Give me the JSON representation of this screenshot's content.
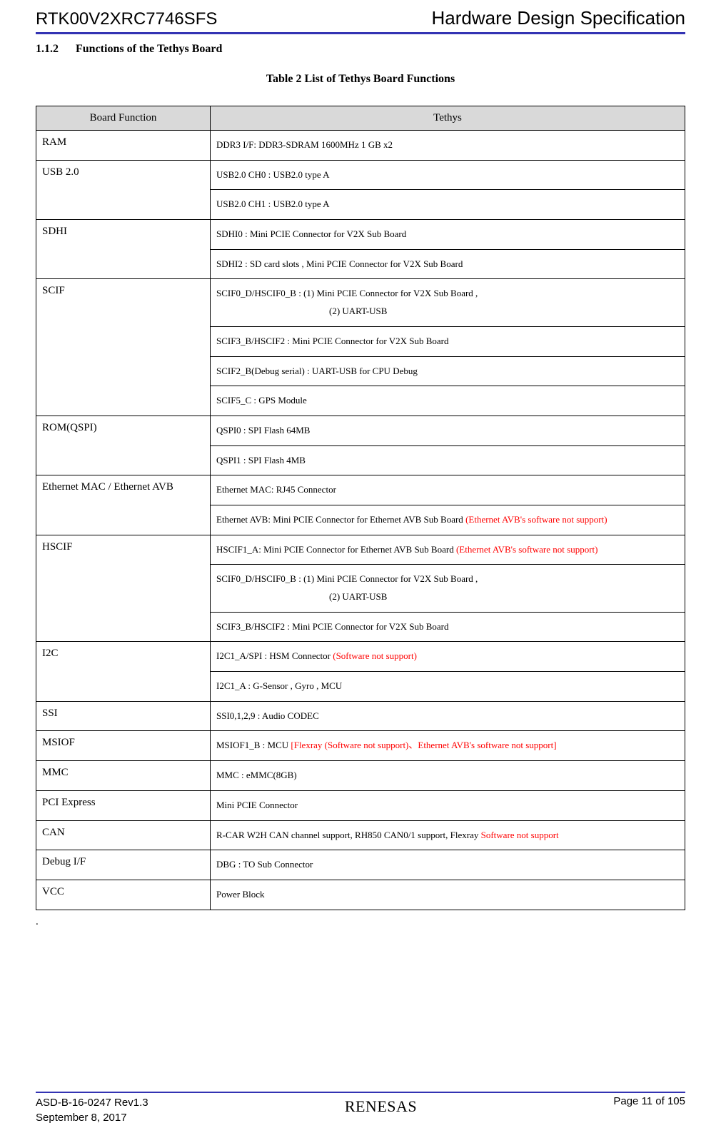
{
  "header": {
    "doc_id": "RTK00V2XRC7746SFS",
    "doc_title": "Hardware Design Specification"
  },
  "section": {
    "number": "1.1.2",
    "title": "Functions of the Tethys Board"
  },
  "table": {
    "caption": "Table 2    List of Tethys Board Functions",
    "col1_header": "Board Function",
    "col2_header": "Tethys",
    "rows": {
      "ram": {
        "label": "RAM",
        "v1": "DDR3 I/F: DDR3-SDRAM 1600MHz 1 GB x2"
      },
      "usb": {
        "label": "USB 2.0",
        "v1": "USB2.0 CH0 : USB2.0 type A",
        "v2": "USB2.0 CH1 : USB2.0 type A"
      },
      "sdhi": {
        "label": "SDHI",
        "v1": "SDHI0 : Mini PCIE Connector for V2X Sub Board",
        "v2": "SDHI2 : SD card slots , Mini PCIE Connector for V2X Sub Board"
      },
      "scif": {
        "label": "SCIF",
        "v1a": "SCIF0_D/HSCIF0_B : (1) Mini PCIE Connector for V2X Sub Board ,",
        "v1b": "(2) UART-USB",
        "v2": "SCIF3_B/HSCIF2 : Mini PCIE Connector for V2X Sub Board",
        "v3": "SCIF2_B(Debug serial) : UART-USB for CPU Debug",
        "v4": "SCIF5_C : GPS Module"
      },
      "rom": {
        "label": "ROM(QSPI)",
        "v1": "QSPI0 : SPI Flash 64MB",
        "v2": "QSPI1 : SPI Flash 4MB"
      },
      "eth": {
        "label": "Ethernet MAC / Ethernet AVB",
        "v1": "Ethernet MAC: RJ45 Connector",
        "v2a": "Ethernet AVB: Mini PCIE Connector for Ethernet AVB Sub Board ",
        "v2b": "(Ethernet AVB's software not support)"
      },
      "hscif": {
        "label": "HSCIF",
        "v1a": "HSCIF1_A: Mini PCIE Connector for Ethernet AVB Sub Board ",
        "v1b": "(Ethernet AVB's software not support)",
        "v2a": "SCIF0_D/HSCIF0_B : (1) Mini PCIE Connector for V2X Sub Board ,",
        "v2b": "(2) UART-USB",
        "v3": "SCIF3_B/HSCIF2 : Mini PCIE Connector for V2X Sub Board"
      },
      "i2c": {
        "label": "I2C",
        "v1a": "I2C1_A/SPI : HSM Connector ",
        "v1b": "(Software not support)",
        "v2": "I2C1_A    : G-Sensor , Gyro , MCU"
      },
      "ssi": {
        "label": "SSI",
        "v1": "SSI0,1,2,9 : Audio CODEC"
      },
      "msiof": {
        "label": "MSIOF",
        "v1a": "MSIOF1_B : MCU ",
        "v1b": "[Flexray (Software not support)、Ethernet AVB's software not support]"
      },
      "mmc": {
        "label": "MMC",
        "v1": "MMC : eMMC(8GB)"
      },
      "pcie": {
        "label": "PCI Express",
        "v1": "Mini PCIE Connector"
      },
      "can": {
        "label": "CAN",
        "v1a": "R-CAR W2H CAN channel support, RH850 CAN0/1 support, Flexray ",
        "v1b": "Software not support"
      },
      "debug": {
        "label": "Debug I/F",
        "v1": "DBG : TO Sub Connector"
      },
      "vcc": {
        "label": "VCC",
        "v1": "Power Block"
      }
    }
  },
  "period": ".",
  "footer": {
    "doc_ref": "ASD-B-16-0247   Rev1.3",
    "date": "September 8, 2017",
    "logo": "RENESAS",
    "page": "Page  11  of 105"
  },
  "colors": {
    "rule": "#3333b3",
    "header_bg": "#d9d9d9",
    "red": "#ff0000"
  }
}
